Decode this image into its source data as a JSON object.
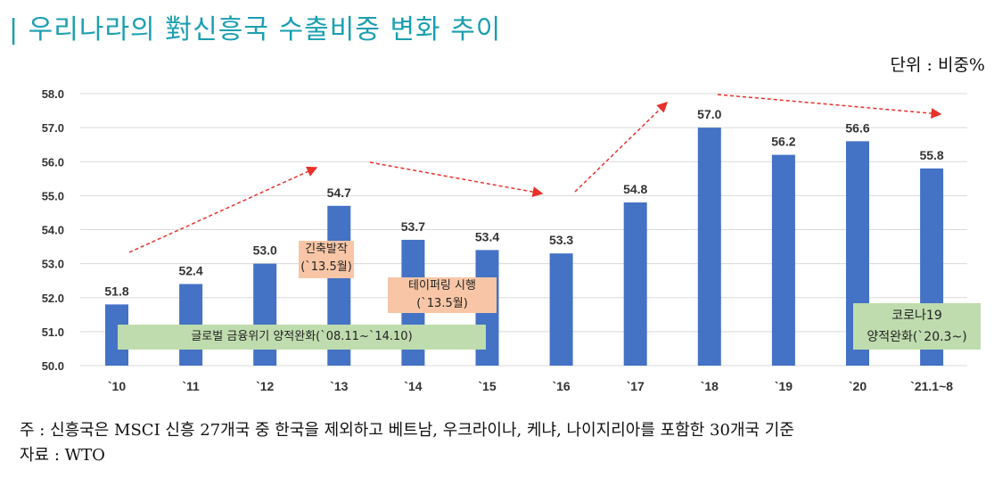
{
  "title": "| 우리나라의 對신흥국 수출비중 변화 추이",
  "unit": "단위 : 비중%",
  "chart_data": {
    "type": "bar",
    "categories": [
      "`10",
      "`11",
      "`12",
      "`13",
      "`14",
      "`15",
      "`16",
      "`17",
      "`18",
      "`19",
      "`20",
      "`21.1~8"
    ],
    "values": [
      51.8,
      52.4,
      53.0,
      54.7,
      53.7,
      53.4,
      53.3,
      54.8,
      57.0,
      56.2,
      56.6,
      55.8
    ],
    "data_labels": [
      "51.8",
      "52.4",
      "53.0",
      "54.7",
      "53.7",
      "53.4",
      "53.3",
      "54.8",
      "57.0",
      "56.2",
      "56.6",
      "55.8"
    ],
    "ylim": [
      50,
      58
    ],
    "yticks": [
      "50.0",
      "51.0",
      "52.0",
      "53.0",
      "54.0",
      "55.0",
      "56.0",
      "57.0",
      "58.0"
    ],
    "grid": true,
    "bar_color": "#4472c4",
    "arrow_color": "#e8312a",
    "annotations": {
      "taper_tantrum": {
        "line1": "긴축발작",
        "line2": "(`13.5월)"
      },
      "tapering": {
        "line1": "테이퍼링 시행",
        "line2": "(`13.5월)"
      },
      "gfc_qe": {
        "text": "글로벌 금융위기 양적완화(`08.11~`14.10)"
      },
      "covid_qe": {
        "line1": "코로나19",
        "line2": "양적완화(`20.3~)"
      }
    }
  },
  "notes": {
    "note1": "주 : 신흥국은 MSCI 신흥 27개국 중 한국을 제외하고 베트남, 우크라이나, 케냐, 나이지리아를 포함한 30개국 기준",
    "source": "자료 : WTO"
  }
}
